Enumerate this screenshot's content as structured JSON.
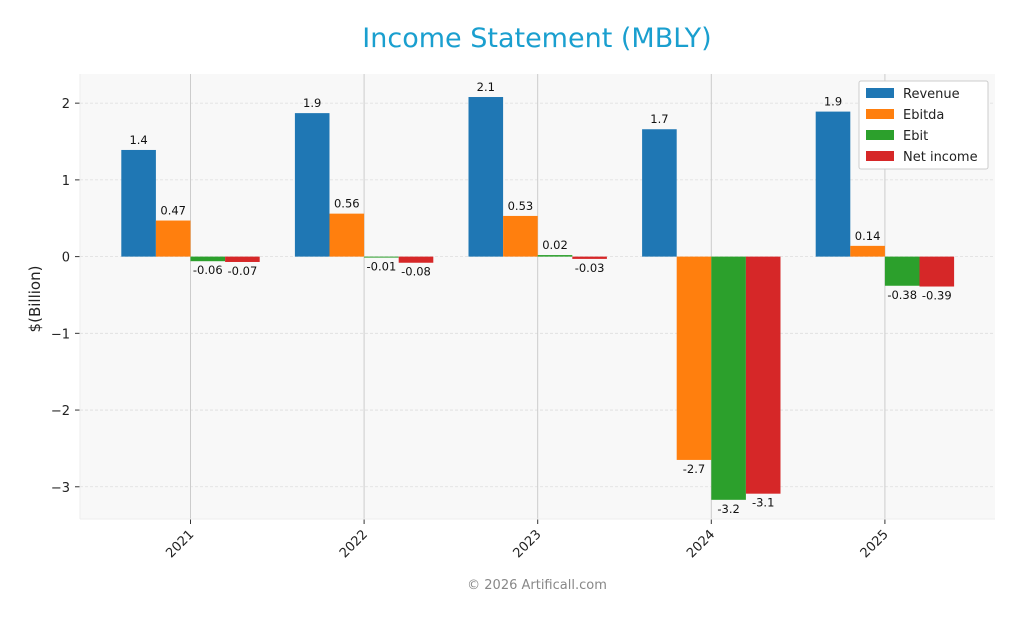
{
  "chart_data": {
    "type": "bar",
    "title": "Income Statement (MBLY)",
    "ylabel": "$(Billion)",
    "xlabel": "",
    "categories": [
      "2021",
      "2022",
      "2023",
      "2024",
      "2025"
    ],
    "ylim": [
      -3.42,
      2.38
    ],
    "yticks": [
      -3,
      -2,
      -1,
      0,
      1,
      2
    ],
    "ytick_labels": [
      "−3",
      "−2",
      "−1",
      "0",
      "1",
      "2"
    ],
    "grid": true,
    "legend_position": "top-right",
    "series": [
      {
        "name": "Revenue",
        "color": "#1f77b4",
        "values": [
          1.39,
          1.87,
          2.08,
          1.66,
          1.89
        ],
        "labels": [
          "1.4",
          "1.9",
          "2.1",
          "1.7",
          "1.9"
        ]
      },
      {
        "name": "Ebitda",
        "color": "#ff7f0e",
        "values": [
          0.47,
          0.56,
          0.53,
          -2.65,
          0.14
        ],
        "labels": [
          "0.47",
          "0.56",
          "0.53",
          "-2.7",
          "0.14"
        ]
      },
      {
        "name": "Ebit",
        "color": "#2ca02c",
        "values": [
          -0.06,
          -0.01,
          0.02,
          -3.17,
          -0.38
        ],
        "labels": [
          "-0.06",
          "-0.01",
          "0.02",
          "-3.2",
          "-0.38"
        ]
      },
      {
        "name": "Net income",
        "color": "#d62728",
        "values": [
          -0.07,
          -0.08,
          -0.03,
          -3.09,
          -0.39
        ],
        "labels": [
          "-0.07",
          "-0.08",
          "-0.03",
          "-3.1",
          "-0.39"
        ]
      }
    ]
  },
  "footer": {
    "copyright": "© 2026 Artificall.com"
  },
  "colors": {
    "title": "#1a9fcf",
    "plot_bg": "#f8f8f8",
    "grid": "#dddddd",
    "footer": "#888888"
  }
}
